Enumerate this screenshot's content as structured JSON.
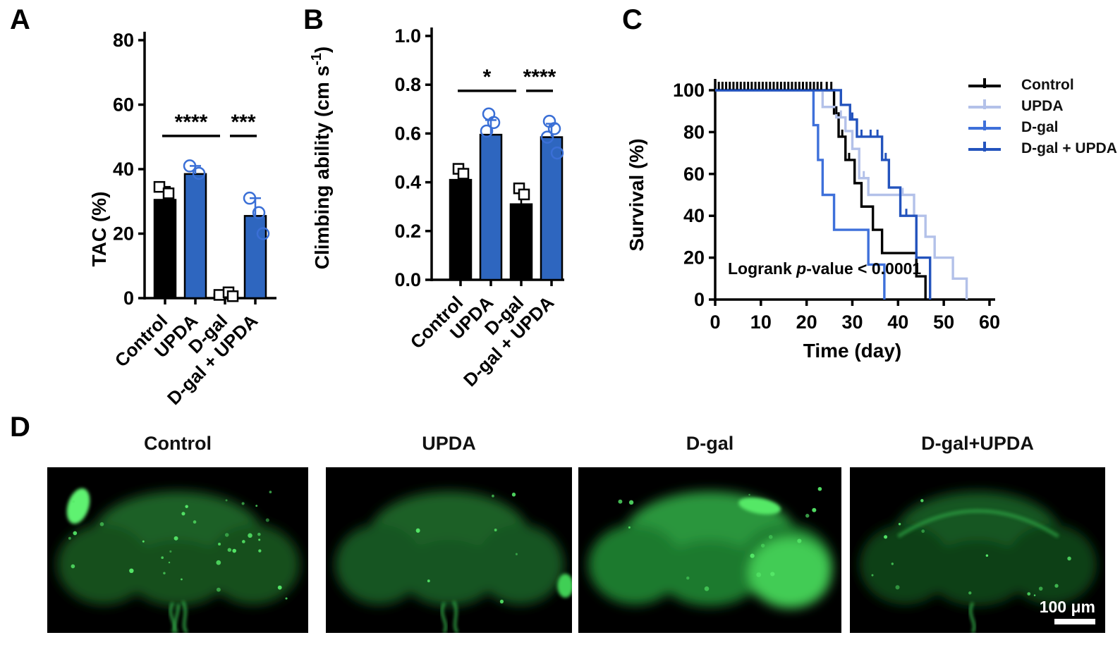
{
  "colors": {
    "black": "#000000",
    "bar_blue": "#2e66bf",
    "marker_blue": "#3a6fd6",
    "upda_light": "#b3c1e9",
    "dgal_blue": "#3e70da",
    "dgal_upda_blue": "#2353bd",
    "fluor_green": "#2f9e42"
  },
  "panels": {
    "a": "A",
    "b": "B",
    "c": "C",
    "d": "D"
  },
  "chart_data": [
    {
      "id": "A",
      "type": "bar",
      "ylabel": "TAC (%)",
      "ylim": [
        0,
        80
      ],
      "yticks": [
        "0",
        "20",
        "40",
        "60",
        "80"
      ],
      "categories": [
        "Control",
        "UPDA",
        "D-gal",
        "D-gal + UPDA"
      ],
      "values": [
        30.5,
        38.5,
        1.2,
        25.5
      ],
      "errors_plus": [
        4,
        2.5,
        1,
        5.5
      ],
      "bar_colors": [
        "black",
        "blue",
        "black",
        "blue"
      ],
      "marker_shapes": [
        "square",
        "circle",
        "square",
        "circle"
      ],
      "points": [
        [
          34.5,
          32.5
        ],
        [
          41,
          38.7
        ],
        [
          1.0,
          1.8,
          0.6
        ],
        [
          31,
          26.5,
          20
        ]
      ],
      "significance": [
        {
          "groups": [
            0,
            2
          ],
          "label": "****",
          "line_y": 50.3
        },
        {
          "groups": [
            2,
            3
          ],
          "label": "***",
          "line_y": 50.3
        }
      ]
    },
    {
      "id": "B",
      "type": "bar",
      "ylabel_parts": {
        "main": "Climbing ability (cm s",
        "sup": "-1",
        "end": ")"
      },
      "ylim": [
        0,
        1
      ],
      "yticks": [
        "0.0",
        "0.2",
        "0.4",
        "0.6",
        "0.8",
        "1.0"
      ],
      "categories": [
        "Control",
        "UPDA",
        "D-gal",
        "D-gal + UPDA"
      ],
      "values": [
        0.41,
        0.595,
        0.31,
        0.585
      ],
      "errors_plus": [
        0.035,
        0.06,
        0.045,
        0.055
      ],
      "bar_colors": [
        "black",
        "blue",
        "black",
        "blue"
      ],
      "marker_shapes": [
        "square",
        "circle",
        "square",
        "circle"
      ],
      "points": [
        [
          0.455,
          0.435
        ],
        [
          0.68,
          0.645,
          0.61
        ],
        [
          0.375,
          0.35
        ],
        [
          0.65,
          0.62,
          0.585,
          0.52
        ]
      ],
      "significance": [
        {
          "groups": [
            0,
            2
          ],
          "label": "*",
          "line_y": 0.775
        },
        {
          "groups": [
            2,
            3
          ],
          "label": "****",
          "line_y": 0.775
        }
      ]
    },
    {
      "id": "C",
      "type": "step-line",
      "xlabel": "Time (day)",
      "ylabel": "Survival (%)",
      "xlim": [
        0,
        60
      ],
      "xticks": [
        "0",
        "10",
        "20",
        "30",
        "40",
        "50",
        "60"
      ],
      "ylim": [
        0,
        100
      ],
      "yticks": [
        "0",
        "20",
        "40",
        "60",
        "80",
        "100"
      ],
      "annotation": {
        "prefix": "Logrank ",
        "italic": "p",
        "suffix": "-value < 0.0001"
      },
      "legend_position": "top-right",
      "series": [
        {
          "name": "Control",
          "color": "#000000",
          "steps": [
            [
              0,
              100
            ],
            [
              26,
              88.9
            ],
            [
              27,
              77.8
            ],
            [
              28.5,
              66.7
            ],
            [
              30.5,
              55.6
            ],
            [
              32,
              44.4
            ],
            [
              34.5,
              33.3
            ],
            [
              36.5,
              22.2
            ],
            [
              44,
              11.1
            ],
            [
              46,
              0
            ]
          ]
        },
        {
          "name": "UPDA",
          "color": "#b3c1e9",
          "steps": [
            [
              0,
              100
            ],
            [
              23.5,
              92
            ],
            [
              26.5,
              87
            ],
            [
              28.5,
              80.5
            ],
            [
              30,
              72
            ],
            [
              31.5,
              58
            ],
            [
              33.5,
              50
            ],
            [
              43.5,
              40
            ],
            [
              46,
              30
            ],
            [
              48,
              20
            ],
            [
              52,
              10
            ],
            [
              55,
              0
            ]
          ]
        },
        {
          "name": "D-gal",
          "color": "#3e70da",
          "steps": [
            [
              0,
              100
            ],
            [
              21.5,
              83.3
            ],
            [
              22.5,
              66.7
            ],
            [
              23.5,
              50
            ],
            [
              26,
              33.3
            ],
            [
              33.5,
              16.7
            ],
            [
              37,
              0
            ]
          ]
        },
        {
          "name": "D-gal + UPDA",
          "color": "#2353bd",
          "steps": [
            [
              0,
              100
            ],
            [
              27.5,
              93
            ],
            [
              29.5,
              86
            ],
            [
              31,
              77.8
            ],
            [
              36.5,
              66.7
            ],
            [
              38,
              53.5
            ],
            [
              40.5,
              40
            ],
            [
              44,
              20
            ],
            [
              47,
              0
            ]
          ]
        }
      ],
      "top_censor_days": [
        0.8,
        1.6,
        2.4,
        3.2,
        4,
        4.8,
        5.6,
        6.4,
        7.2,
        8,
        8.8,
        9.6,
        10.4,
        11.2,
        12,
        12.8,
        13.6,
        14.4,
        15.2,
        16,
        16.8,
        17.6,
        18.4,
        19.2,
        20,
        20.8,
        21.6,
        22.4,
        23.2,
        24.4,
        25.4
      ],
      "censor_marks": [
        {
          "series": 0,
          "day": 26.5,
          "pct": 88.9
        },
        {
          "series": 0,
          "day": 27.8,
          "pct": 77.8
        },
        {
          "series": 0,
          "day": 29.3,
          "pct": 66.7
        },
        {
          "series": 1,
          "day": 27.5,
          "pct": 87
        },
        {
          "series": 1,
          "day": 32.5,
          "pct": 58
        },
        {
          "series": 1,
          "day": 41,
          "pct": 50
        },
        {
          "series": 3,
          "day": 30,
          "pct": 86
        },
        {
          "series": 3,
          "day": 32,
          "pct": 77.8
        },
        {
          "series": 3,
          "day": 34,
          "pct": 77.8
        },
        {
          "series": 3,
          "day": 35.5,
          "pct": 77.8
        },
        {
          "series": 3,
          "day": 37.3,
          "pct": 66.7
        },
        {
          "series": 3,
          "day": 41.8,
          "pct": 40
        }
      ]
    }
  ],
  "panel_d": {
    "images": [
      {
        "title": "Control",
        "variant": "speckled"
      },
      {
        "title": "UPDA",
        "variant": "smooth"
      },
      {
        "title": "D-gal",
        "variant": "bright"
      },
      {
        "title": "D-gal+UPDA",
        "variant": "outlined"
      }
    ],
    "scale_bar": {
      "text": "100 μm"
    }
  }
}
